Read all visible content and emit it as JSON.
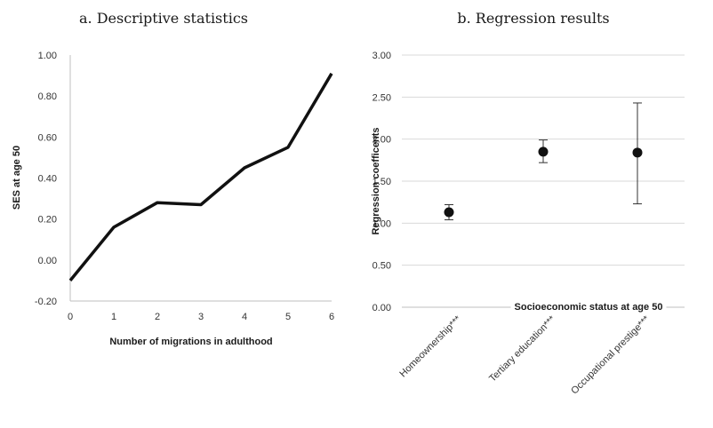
{
  "chart_data": [
    {
      "type": "line",
      "title": "a. Descriptive statistics",
      "xlabel": "Number of migrations in adulthood",
      "ylabel": "SES at age 50",
      "x": [
        0,
        1,
        2,
        3,
        4,
        5,
        6
      ],
      "series": [
        {
          "values": [
            -0.1,
            0.16,
            0.28,
            0.27,
            0.45,
            0.55,
            0.91
          ]
        }
      ],
      "xlim": [
        0,
        6
      ],
      "ylim": [
        -0.2,
        1.0
      ],
      "x_ticks": [
        "0",
        "1",
        "2",
        "3",
        "4",
        "5",
        "6"
      ],
      "y_ticks": [
        "-0.20",
        "0.00",
        "0.20",
        "0.40",
        "0.60",
        "0.80",
        "1.00"
      ],
      "grid": false,
      "line_color": "#111111"
    },
    {
      "type": "scatter",
      "title": "b. Regression results",
      "xlabel": "Socioeconomic status at age 50",
      "ylabel": "Regression coefficents",
      "categories": [
        "Homeownership***",
        "Tertiary education***",
        "Occupational prestige***"
      ],
      "values": [
        1.13,
        1.85,
        1.84
      ],
      "error_low": [
        1.04,
        1.72,
        1.23
      ],
      "error_high": [
        1.22,
        1.99,
        2.43
      ],
      "ylim": [
        0.0,
        3.0
      ],
      "y_ticks": [
        "0.00",
        "0.50",
        "1.00",
        "1.50",
        "2.00",
        "2.50",
        "3.00"
      ],
      "grid": true,
      "marker_color": "#111111"
    }
  ]
}
